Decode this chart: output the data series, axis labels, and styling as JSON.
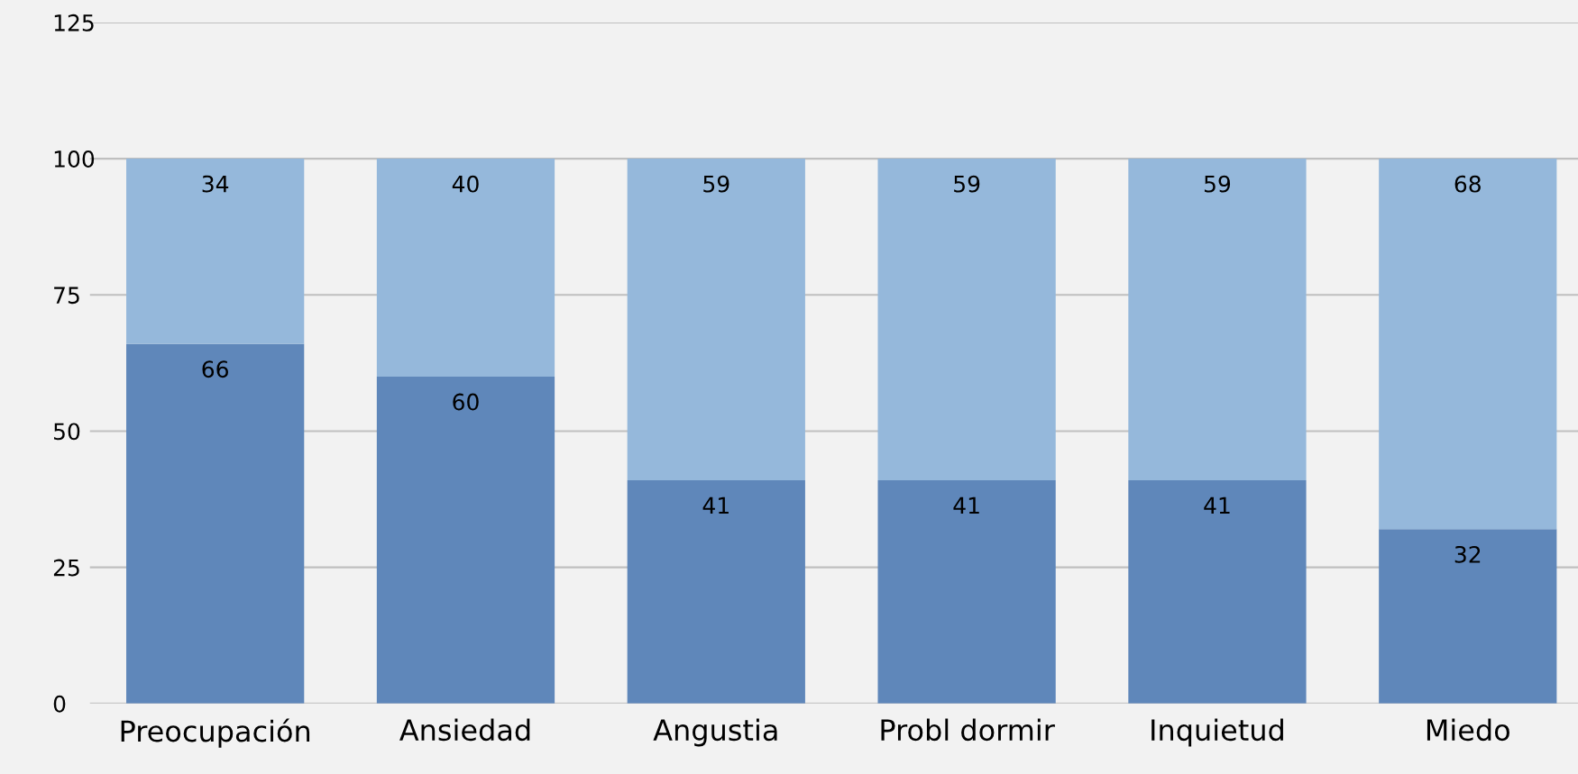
{
  "chart_data": {
    "type": "bar",
    "stacked": true,
    "categories": [
      "Preocupación",
      "Ansiedad",
      "Angustia",
      "Probl dormir",
      "Inquietud",
      "Miedo"
    ],
    "series": [
      {
        "color": "#5f87ba",
        "values": [
          66,
          60,
          41,
          41,
          41,
          32
        ]
      },
      {
        "color": "#95b8db",
        "values": [
          34,
          40,
          59,
          59,
          59,
          68
        ]
      }
    ],
    "ylim": [
      0,
      125
    ],
    "yticks": [
      0,
      25,
      50,
      75,
      100,
      125
    ],
    "grid": "y",
    "data_labels": true
  }
}
